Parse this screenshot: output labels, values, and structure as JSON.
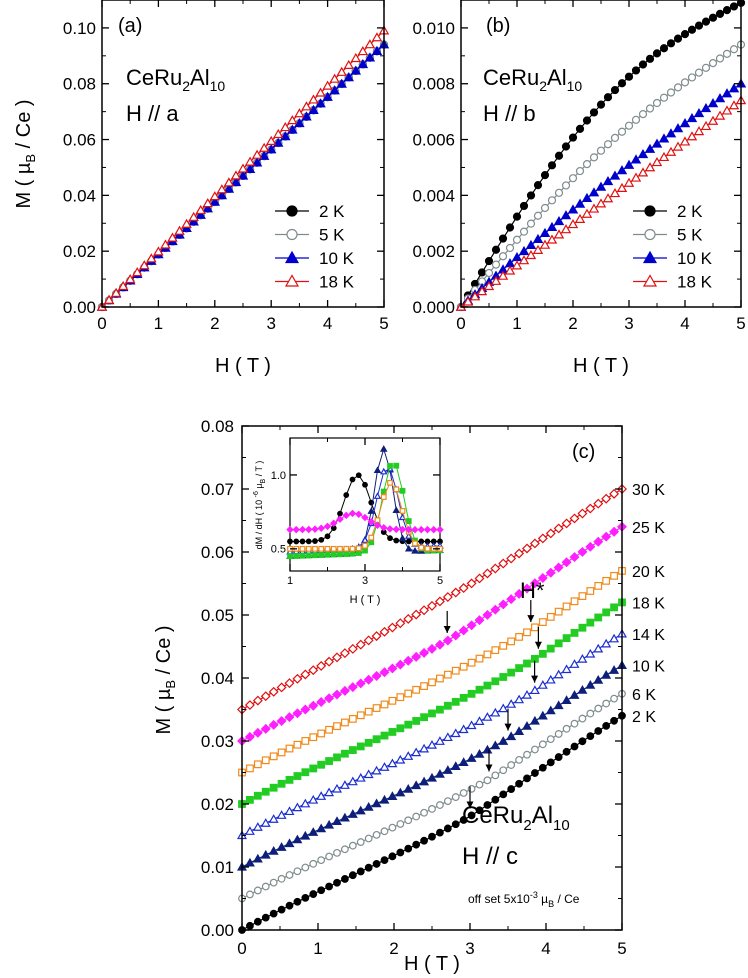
{
  "chart_data": [
    {
      "type": "line",
      "panel_label": "(a)",
      "compound": {
        "main": "CeRu",
        "sub1": "2",
        "mid": "Al",
        "sub2": "10"
      },
      "field_direction": "H // a",
      "xlabel": "H ( T )",
      "ylabel": "M ( µB / Ce )",
      "xlim": [
        0,
        5
      ],
      "ylim": [
        0,
        0.11
      ],
      "xticks": [
        "0",
        "1",
        "2",
        "3",
        "4",
        "5"
      ],
      "yticks": [
        "0.00",
        "0.02",
        "0.04",
        "0.06",
        "0.08",
        "0.10"
      ],
      "legend": "lower-right",
      "series": [
        {
          "name": "2 K",
          "marker": "circle-filled",
          "color": "#000000",
          "x_max": 5,
          "end": 0.094,
          "curv": 0
        },
        {
          "name": "5 K",
          "marker": "circle-open",
          "color": "#7f8c8d",
          "x_max": 5,
          "end": 0.094,
          "curv": 0
        },
        {
          "name": "10 K",
          "marker": "triangle-filled",
          "color": "#0000cc",
          "x_max": 5,
          "end": 0.094,
          "curv": 0
        },
        {
          "name": "18 K",
          "marker": "triangle-open",
          "color": "#e01010",
          "x_max": 5,
          "end": 0.099,
          "curv": 0
        }
      ]
    },
    {
      "type": "line",
      "panel_label": "(b)",
      "compound": {
        "main": "CeRu",
        "sub1": "2",
        "mid": "Al",
        "sub2": "10"
      },
      "field_direction": "H // b",
      "xlabel": "H ( T )",
      "ylabel": "",
      "xlim": [
        0,
        5
      ],
      "ylim": [
        0,
        0.011
      ],
      "xticks": [
        "0",
        "1",
        "2",
        "3",
        "4",
        "5"
      ],
      "yticks": [
        "0.000",
        "0.002",
        "0.004",
        "0.006",
        "0.008",
        "0.010"
      ],
      "legend": "lower-right",
      "series": [
        {
          "name": "2 K",
          "marker": "circle-filled",
          "color": "#000000",
          "x_max": 5,
          "end": 0.0109,
          "curv": 0.0018
        },
        {
          "name": "5 K",
          "marker": "circle-open",
          "color": "#7f8c8d",
          "x_max": 5,
          "end": 0.0094,
          "curv": 0.0009
        },
        {
          "name": "10 K",
          "marker": "triangle-filled",
          "color": "#0000cc",
          "x_max": 5,
          "end": 0.008,
          "curv": 0.0003
        },
        {
          "name": "18 K",
          "marker": "triangle-open",
          "color": "#e01010",
          "x_max": 5,
          "end": 0.0074,
          "curv": 0
        }
      ]
    },
    {
      "type": "line",
      "panel_label": "(c)",
      "compound": {
        "main": "CeRu",
        "sub1": "2",
        "mid": "Al",
        "sub2": "10"
      },
      "field_direction": "H // c",
      "xlabel": "H ( T )",
      "ylabel": "M ( µB / Ce )",
      "xlim": [
        0,
        5
      ],
      "ylim": [
        0,
        0.08
      ],
      "xticks": [
        "0",
        "1",
        "2",
        "3",
        "4",
        "5"
      ],
      "yticks": [
        "0.00",
        "0.01",
        "0.02",
        "0.03",
        "0.04",
        "0.05",
        "0.06",
        "0.07",
        "0.08"
      ],
      "offset_note": "off set 5x10",
      "offset_exp": "-3",
      "offset_unit": "µB / Ce",
      "hstar_label": "H*",
      "series": [
        {
          "name": "2 K",
          "marker": "circle-filled",
          "color": "#000000",
          "offset": 0.0,
          "end": 0.034,
          "hstar": 3.0
        },
        {
          "name": "6 K",
          "marker": "circle-open",
          "color": "#7f8c8d",
          "offset": 0.005,
          "end": 0.0375,
          "hstar": 3.25
        },
        {
          "name": "10 K",
          "marker": "triangle-filled",
          "color": "#0d1f7a",
          "offset": 0.01,
          "end": 0.042,
          "hstar": 3.5
        },
        {
          "name": "14 K",
          "marker": "triangle-open",
          "color": "#1a2fd0",
          "offset": 0.015,
          "end": 0.047,
          "hstar": 3.85
        },
        {
          "name": "18 K",
          "marker": "square-filled",
          "color": "#22cc22",
          "offset": 0.02,
          "end": 0.052,
          "hstar": 3.9
        },
        {
          "name": "20 K",
          "marker": "square-open",
          "color": "#ef8b1c",
          "offset": 0.025,
          "end": 0.057,
          "hstar": 3.8
        },
        {
          "name": "25 K",
          "marker": "diamond-filled",
          "color": "#ff1fff",
          "offset": 0.03,
          "end": 0.064,
          "hstar": 2.7
        },
        {
          "name": "30 K",
          "marker": "diamond-open",
          "color": "#e01010",
          "offset": 0.035,
          "end": 0.07,
          "hstar": null
        }
      ],
      "inset": {
        "type": "line",
        "xlabel": "H ( T )",
        "ylabel": "dM / dH ( 10 -6 µB / T )",
        "xlim": [
          1,
          5
        ],
        "ylim": [
          0.35,
          1.25
        ],
        "xticks": [
          "1",
          "3",
          "5"
        ],
        "yticks": [
          "0.5",
          "1.0"
        ],
        "series": [
          {
            "name": "2 K",
            "peak_x": 2.8,
            "peak_y": 1.0,
            "width": 0.5,
            "base": 0.55
          },
          {
            "name": "10 K",
            "peak_x": 3.5,
            "peak_y": 1.15,
            "width": 0.35,
            "base": 0.45
          },
          {
            "name": "14 K",
            "peak_x": 3.6,
            "peak_y": 1.03,
            "width": 0.4,
            "base": 0.48
          },
          {
            "name": "18 K",
            "peak_x": 3.75,
            "peak_y": 1.06,
            "width": 0.4,
            "base": 0.45
          },
          {
            "name": "20 K",
            "peak_x": 3.7,
            "peak_y": 0.95,
            "width": 0.4,
            "base": 0.5
          },
          {
            "name": "25 K",
            "peak_x": 2.7,
            "peak_y": 0.74,
            "width": 0.55,
            "base": 0.63
          }
        ]
      }
    }
  ]
}
